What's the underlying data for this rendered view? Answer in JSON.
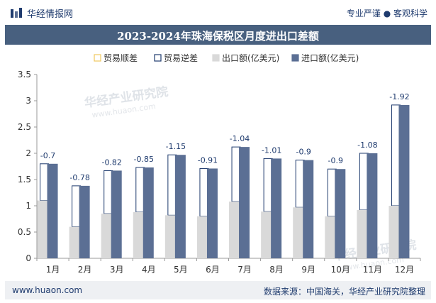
{
  "header": {
    "brand": "华经情报网",
    "tagline": "专业严谨 ● 客观科学"
  },
  "footer": {
    "website": "www.huaon.com",
    "source": "数据来源：中国海关，华经产业研究院整理"
  },
  "watermark": {
    "text": "华经产业研究院",
    "url": "www.huaon.com"
  },
  "colors": {
    "export": "#d9d9d9",
    "import": "#5b6f94",
    "surplus": "#f0c75e",
    "deficit": "#1f3b6e",
    "title_bg": "#48607f"
  },
  "chart_data": {
    "type": "bar",
    "title": "2023-2024年珠海保税区月度进出口差额",
    "categories": [
      "1月",
      "2月",
      "3月",
      "4月",
      "5月",
      "6月",
      "7月",
      "8月",
      "9月",
      "10月",
      "11月",
      "12月"
    ],
    "series": [
      {
        "name": "出口额(亿美元)",
        "values": [
          1.1,
          0.6,
          0.85,
          0.88,
          0.82,
          0.8,
          1.08,
          0.89,
          0.97,
          0.8,
          0.92,
          1.0
        ]
      },
      {
        "name": "进口额(亿美元)",
        "values": [
          1.8,
          1.38,
          1.67,
          1.73,
          1.97,
          1.71,
          2.12,
          1.9,
          1.87,
          1.7,
          2.0,
          2.92
        ]
      }
    ],
    "balance": {
      "name": "贸易逆差",
      "values": [
        -0.7,
        -0.78,
        -0.82,
        -0.85,
        -1.15,
        -0.91,
        -1.04,
        -1.01,
        -0.9,
        -0.9,
        -1.08,
        -1.92
      ]
    },
    "balance_labels": [
      "-0.7",
      "-0.78",
      "-0.82",
      "-0.85",
      "-1.15",
      "-0.91",
      "-1.04",
      "-1.01",
      "-0.9",
      "-0.9",
      "-1.08",
      "-1.92"
    ],
    "legend": [
      "贸易顺差",
      "贸易逆差",
      "出口额(亿美元)",
      "进口额(亿美元)"
    ],
    "yticks": [
      "0",
      "0.5",
      "1",
      "1.5",
      "2",
      "2.5",
      "3",
      "3.5"
    ],
    "ylim": [
      0,
      3.5
    ],
    "xlabel": "",
    "ylabel": ""
  }
}
